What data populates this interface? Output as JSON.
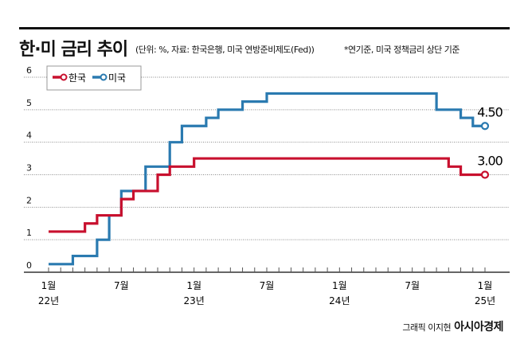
{
  "header": {
    "title": "한·미 금리 추이",
    "subtitle": "(단위: %, 자료: 한국은행, 미국 연방준비제도(Fed))",
    "note": "*연기준, 미국 정책금리 상단 기준"
  },
  "credit": {
    "author": "그래픽 이지현",
    "publisher": "아시아경제"
  },
  "chart_data": {
    "type": "line",
    "step": true,
    "ylim": [
      0,
      6
    ],
    "yticks": [
      "0",
      "1",
      "2",
      "3",
      "4",
      "5",
      "6"
    ],
    "grid": true,
    "legend": "top-left",
    "x": [
      "2022-01",
      "2022-02",
      "2022-03",
      "2022-04",
      "2022-05",
      "2022-06",
      "2022-07",
      "2022-08",
      "2022-09",
      "2022-10",
      "2022-11",
      "2022-12",
      "2023-01",
      "2023-02",
      "2023-03",
      "2023-04",
      "2023-05",
      "2023-06",
      "2023-07",
      "2023-08",
      "2023-09",
      "2023-10",
      "2023-11",
      "2023-12",
      "2024-01",
      "2024-02",
      "2024-03",
      "2024-04",
      "2024-05",
      "2024-06",
      "2024-07",
      "2024-08",
      "2024-09",
      "2024-10",
      "2024-11",
      "2024-12",
      "2025-01"
    ],
    "xtick_labels": [
      {
        "month": "1월",
        "year": "22년"
      },
      {
        "month": "7월",
        "year": ""
      },
      {
        "month": "1월",
        "year": "23년"
      },
      {
        "month": "7월",
        "year": ""
      },
      {
        "month": "1월",
        "year": "24년"
      },
      {
        "month": "7월",
        "year": ""
      },
      {
        "month": "1월",
        "year": "25년"
      }
    ],
    "series": [
      {
        "name": "한국",
        "color": "#c8102e",
        "end_label": "3.00",
        "values": [
          1.25,
          1.25,
          1.25,
          1.5,
          1.75,
          1.75,
          2.25,
          2.5,
          2.5,
          3.0,
          3.25,
          3.25,
          3.5,
          3.5,
          3.5,
          3.5,
          3.5,
          3.5,
          3.5,
          3.5,
          3.5,
          3.5,
          3.5,
          3.5,
          3.5,
          3.5,
          3.5,
          3.5,
          3.5,
          3.5,
          3.5,
          3.5,
          3.5,
          3.25,
          3.0,
          3.0,
          3.0
        ]
      },
      {
        "name": "미국",
        "color": "#2a7ab0",
        "end_label": "4.50",
        "values": [
          0.25,
          0.25,
          0.5,
          0.5,
          1.0,
          1.75,
          2.5,
          2.5,
          3.25,
          3.25,
          4.0,
          4.5,
          4.5,
          4.75,
          5.0,
          5.0,
          5.25,
          5.25,
          5.5,
          5.5,
          5.5,
          5.5,
          5.5,
          5.5,
          5.5,
          5.5,
          5.5,
          5.5,
          5.5,
          5.5,
          5.5,
          5.5,
          5.0,
          5.0,
          4.75,
          4.5,
          4.5
        ]
      }
    ]
  }
}
